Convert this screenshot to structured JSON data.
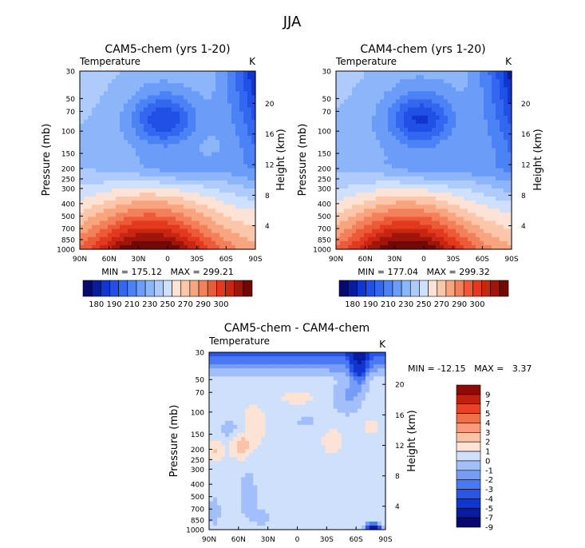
{
  "figure_title": "JJA",
  "chart_data": [
    {
      "type": "heatmap",
      "title": "CAM5-chem (yrs 1-20)",
      "left_label": "Temperature",
      "right_label": "K",
      "ylabel": "Pressure (mb)",
      "ylabel_right": "Height (km)",
      "x_ticks": [
        "90N",
        "60N",
        "30N",
        "0",
        "30S",
        "60S",
        "90S"
      ],
      "y_ticks": [
        "30",
        "50",
        "70",
        "100",
        "150",
        "200",
        "250",
        "300",
        "400",
        "500",
        "700",
        "850",
        "1000"
      ],
      "height_ticks": [
        "20",
        "16",
        "12",
        "8",
        "4"
      ],
      "stats": "MIN = 175.12   MAX = 299.21",
      "colorbar_labels": [
        "180",
        "190",
        "210",
        "230",
        "250",
        "270",
        "290",
        "300"
      ],
      "field": {
        "min": 175.12,
        "max": 299.21,
        "vortex_at": [
          0.48,
          0.27
        ]
      }
    },
    {
      "type": "heatmap",
      "title": "CAM4-chem (yrs 1-20)",
      "left_label": "Temperature",
      "right_label": "K",
      "ylabel": "Pressure (mb)",
      "ylabel_right": "Height (km)",
      "x_ticks": [
        "90N",
        "60N",
        "30N",
        "0",
        "30S",
        "60S",
        "90S"
      ],
      "y_ticks": [
        "30",
        "50",
        "70",
        "100",
        "150",
        "200",
        "250",
        "300",
        "400",
        "500",
        "700",
        "850",
        "1000"
      ],
      "height_ticks": [
        "20",
        "16",
        "12",
        "8",
        "4"
      ],
      "stats": "MIN = 177.04   MAX = 299.32",
      "colorbar_labels": [
        "180",
        "190",
        "210",
        "230",
        "250",
        "270",
        "290",
        "300"
      ],
      "field": {
        "min": 177.04,
        "max": 299.32,
        "vortex_at": [
          0.48,
          0.27
        ]
      }
    },
    {
      "type": "heatmap",
      "title": "CAM5-chem - CAM4-chem",
      "left_label": "Temperature",
      "right_label": "K",
      "ylabel": "Pressure (mb)",
      "ylabel_right": "Height (km)",
      "x_ticks": [
        "90N",
        "60N",
        "30N",
        "0",
        "30S",
        "60S",
        "90S"
      ],
      "y_ticks": [
        "30",
        "50",
        "70",
        "100",
        "150",
        "200",
        "250",
        "300",
        "400",
        "500",
        "700",
        "850",
        "1000"
      ],
      "height_ticks": [
        "20",
        "16",
        "12",
        "8",
        "4"
      ],
      "stats": "MIN = -12.15   MAX =   3.37",
      "colorbar_labels": [
        "9",
        "7",
        "5",
        "4",
        "3",
        "2",
        "1",
        "0",
        "-1",
        "-2",
        "-3",
        "-4",
        "-5",
        "-7",
        "-9"
      ],
      "field": {
        "min": -12.15,
        "max": 3.37
      }
    }
  ],
  "colors": {
    "abs_scale": [
      "#08086e",
      "#0a1ba3",
      "#1135cf",
      "#2050e6",
      "#3467f0",
      "#4b82f5",
      "#6b9cf8",
      "#8db5fa",
      "#afcbfb",
      "#cfe0fc",
      "#fde3d6",
      "#fbc6aa",
      "#f8a47e",
      "#f3805a",
      "#ec5a37",
      "#e2391f",
      "#c82512",
      "#a0150a",
      "#700808"
    ],
    "diff_scale": [
      "#08086e",
      "#0a1ba3",
      "#1135cf",
      "#2a55e8",
      "#4b78f3",
      "#759df8",
      "#a3bffb",
      "#cfe0fc",
      "#fde3d6",
      "#fbc3a5",
      "#f79c74",
      "#f07048",
      "#e64425",
      "#c2200f",
      "#8c0b06"
    ]
  }
}
